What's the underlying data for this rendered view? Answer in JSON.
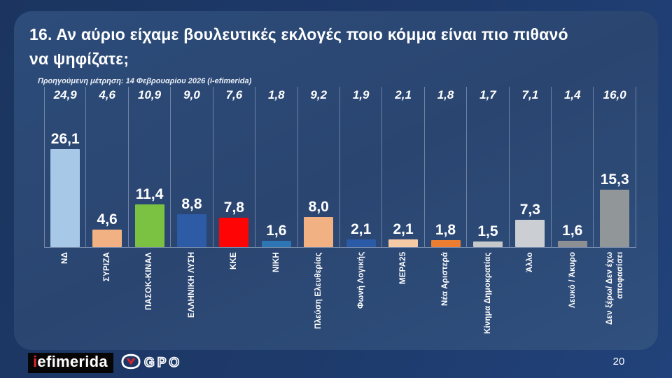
{
  "slide": {
    "title_line1": "16. Αν αύριο είχαμε βουλευτικές εκλογές ποιο κόμμα είναι πιο πιθανό",
    "title_line2": "να ψηφίζατε;",
    "subtitle": "Προηγούμενη μέτρηση: 14 Φεβρουαρίου 2026 (i-efimerida)",
    "page_number": "20"
  },
  "footer": {
    "iefimerida_i": "i",
    "iefimerida_rest": "efimerida",
    "gpo_label": "GPO"
  },
  "chart_data": {
    "type": "bar",
    "title": "16. Αν αύριο είχαμε βουλευτικές εκλογές ποιο κόμμα είναι πιο πιθανό να ψηφίζατε;",
    "categories": [
      "ΝΔ",
      "ΣΥΡΙΖΑ",
      "ΠΑΣΟΚ-ΚΙΝΑΛ",
      "ΕΛΛΗΝΙΚΗ ΛΥΣΗ",
      "ΚΚΕ",
      "ΝΙΚΗ",
      "Πλεύση Ελευθερίας",
      "Φωνή Λογικής",
      "ΜΕΡΑ25",
      "Νέα Αριστερά",
      "Κίνημα Δημοκρατίας",
      "Άλλο",
      "Λευκό / Άκυρο",
      "Δεν ξέρω/ Δεν έχω αποφασίσει"
    ],
    "values": [
      26.1,
      4.6,
      11.4,
      8.8,
      7.8,
      1.6,
      8.0,
      2.1,
      2.1,
      1.8,
      1.5,
      7.3,
      1.6,
      15.3
    ],
    "value_labels": [
      "26,1",
      "4,6",
      "11,4",
      "8,8",
      "7,8",
      "1,6",
      "8,0",
      "2,1",
      "2,1",
      "1,8",
      "1,5",
      "7,3",
      "1,6",
      "15,3"
    ],
    "previous_values": [
      24.9,
      4.6,
      10.9,
      9.0,
      7.6,
      1.8,
      9.2,
      1.9,
      2.1,
      1.8,
      1.7,
      7.1,
      1.4,
      16.0
    ],
    "previous_value_labels": [
      "24,9",
      "4,6",
      "10,9",
      "9,0",
      "7,6",
      "1,8",
      "9,2",
      "1,9",
      "2,1",
      "1,8",
      "1,7",
      "7,1",
      "1,4",
      "16,0"
    ],
    "previous_series_note": "Προηγούμενη μέτρηση: 14 Φεβρουαρίου 2026 (i-efimerida)",
    "bar_colors": [
      "#a8c8e8",
      "#f2b183",
      "#7cc242",
      "#2d5ba6",
      "#fe0404",
      "#2e75b6",
      "#f2b183",
      "#2b5aa7",
      "#f7caa6",
      "#ed7d31",
      "#c6c9cc",
      "#cbcfd3",
      "#8c9093",
      "#919699"
    ],
    "ylim": [
      0,
      38
    ],
    "bar_label_color": "#ffffff",
    "grid": "vertical-dividers",
    "legend": "none"
  }
}
